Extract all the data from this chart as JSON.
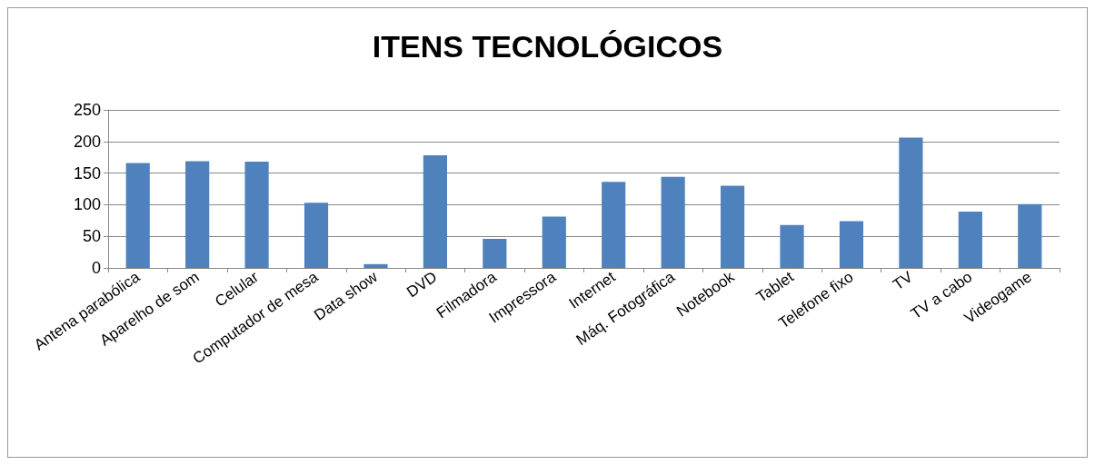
{
  "chart_data": {
    "type": "bar",
    "title": "ITENS TECNOLÓGICOS",
    "categories": [
      "Antena parabólica",
      "Aparelho de som",
      "Celular",
      "Computador de mesa",
      "Data show",
      "DVD",
      "Filmadora",
      "Impressora",
      "Internet",
      "Máq. Fotográfica",
      "Notebook",
      "Tablet",
      "Telefone fixo",
      "TV",
      "TV a cabo",
      "Videogame"
    ],
    "values": [
      166,
      169,
      168,
      103,
      6,
      178,
      46,
      81,
      136,
      144,
      130,
      68,
      74,
      206,
      89,
      101
    ],
    "color": "#4f81bd",
    "ylim": [
      0,
      250
    ],
    "yticks": [
      0,
      50,
      100,
      150,
      200,
      250
    ],
    "grid": "y"
  }
}
